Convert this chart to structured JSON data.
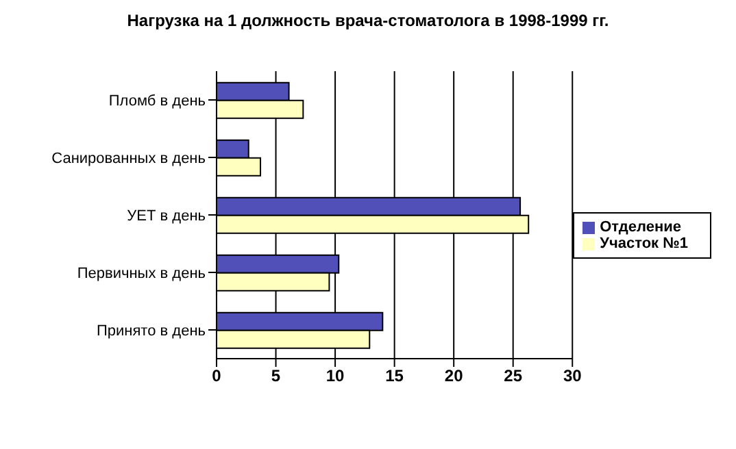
{
  "chart_data": {
    "type": "bar",
    "orientation": "horizontal",
    "title": "Нагрузка на 1 должность врача-стоматолога в 1998-1999 гг.",
    "categories": [
      "Пломб в день",
      "Санированных в день",
      "УЕТ в день",
      "Первичных в день",
      "Принято в день"
    ],
    "series": [
      {
        "name": "Отделение",
        "color": "#5050b8",
        "values": [
          6.1,
          2.7,
          25.6,
          10.3,
          14.0
        ]
      },
      {
        "name": "Участок №1",
        "color": "#ffffc0",
        "values": [
          7.3,
          3.7,
          26.3,
          9.5,
          12.9
        ]
      }
    ],
    "xlim": [
      0,
      30
    ],
    "xticks": [
      0,
      5,
      10,
      15,
      20,
      25,
      30
    ],
    "grid": "x",
    "legend": "right"
  }
}
